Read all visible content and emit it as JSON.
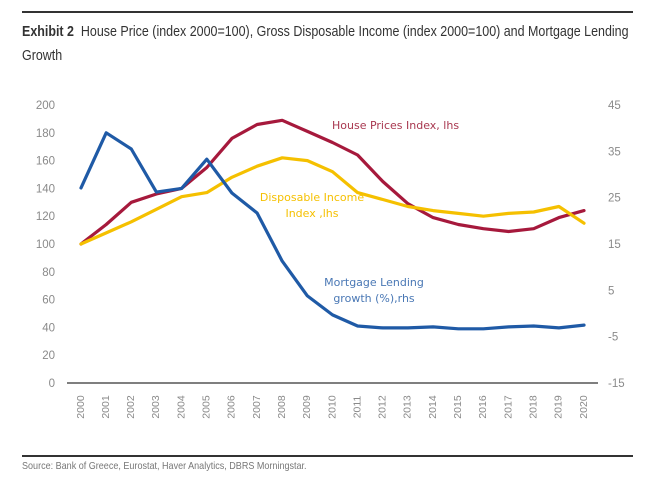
{
  "header": {
    "exhibit_label": "Exhibit 2",
    "title": "House Price (index 2000=100), Gross Disposable Income (index 2000=100) and Mortgage Lending Growth"
  },
  "footer": {
    "source": "Source: Bank of Greece, Eurostat, Haver Analytics, DBRS Morningstar."
  },
  "chart_data": {
    "type": "line",
    "title": "House Price (index 2000=100), Gross Disposable Income (index 2000=100) and Mortgage Lending Growth",
    "xlabel": "",
    "ylabel": "",
    "x": [
      "2000",
      "2001",
      "2002",
      "2003",
      "2004",
      "2005",
      "2006",
      "2007",
      "2008",
      "2009",
      "2010",
      "2011",
      "2012",
      "2013",
      "2014",
      "2015",
      "2016",
      "2017",
      "2018",
      "2019",
      "2020"
    ],
    "y_left": {
      "range": [
        0,
        200
      ],
      "ticks": [
        "200",
        "180",
        "160",
        "140",
        "120",
        "100",
        "80",
        "60",
        "40",
        "20",
        "0"
      ]
    },
    "y_right": {
      "range": [
        -15,
        45
      ],
      "ticks": [
        "45",
        "35",
        "25",
        "15",
        "5",
        "-5",
        "-15"
      ]
    },
    "grid": false,
    "legend": "inline-annotations",
    "series": [
      {
        "name": "House Prices Index, lhs",
        "axis": "left",
        "color": "#A6193C",
        "label_color": "#A8374F",
        "values": [
          100,
          114,
          130,
          136,
          140,
          155,
          176,
          186,
          189,
          181,
          173,
          164,
          145,
          129,
          119,
          114,
          111,
          109,
          111,
          119,
          124
        ]
      },
      {
        "name": "Disposable Income Index ,lhs",
        "label_lines": [
          "Disposable Income",
          "Index ,lhs"
        ],
        "axis": "left",
        "color": "#F5C000",
        "label_color": "#F5C000",
        "values": [
          100,
          108,
          116,
          125,
          134,
          137,
          148,
          156,
          162,
          160,
          152,
          137,
          132,
          127,
          124,
          122,
          120,
          122,
          123,
          127,
          115
        ]
      },
      {
        "name": "Mortgage Lending growth (%),rhs",
        "label_lines": [
          "Mortgage Lending",
          "growth (%),rhs"
        ],
        "axis": "right",
        "color": "#1F5AA6",
        "label_color": "#4A78B5",
        "values": [
          27.1,
          39.0,
          35.5,
          26.2,
          27.0,
          33.3,
          26.0,
          21.7,
          11.3,
          3.8,
          -0.3,
          -2.7,
          -3.1,
          -3.1,
          -2.9,
          -3.3,
          -3.3,
          -2.9,
          -2.7,
          -3.1,
          -2.5
        ]
      }
    ]
  }
}
